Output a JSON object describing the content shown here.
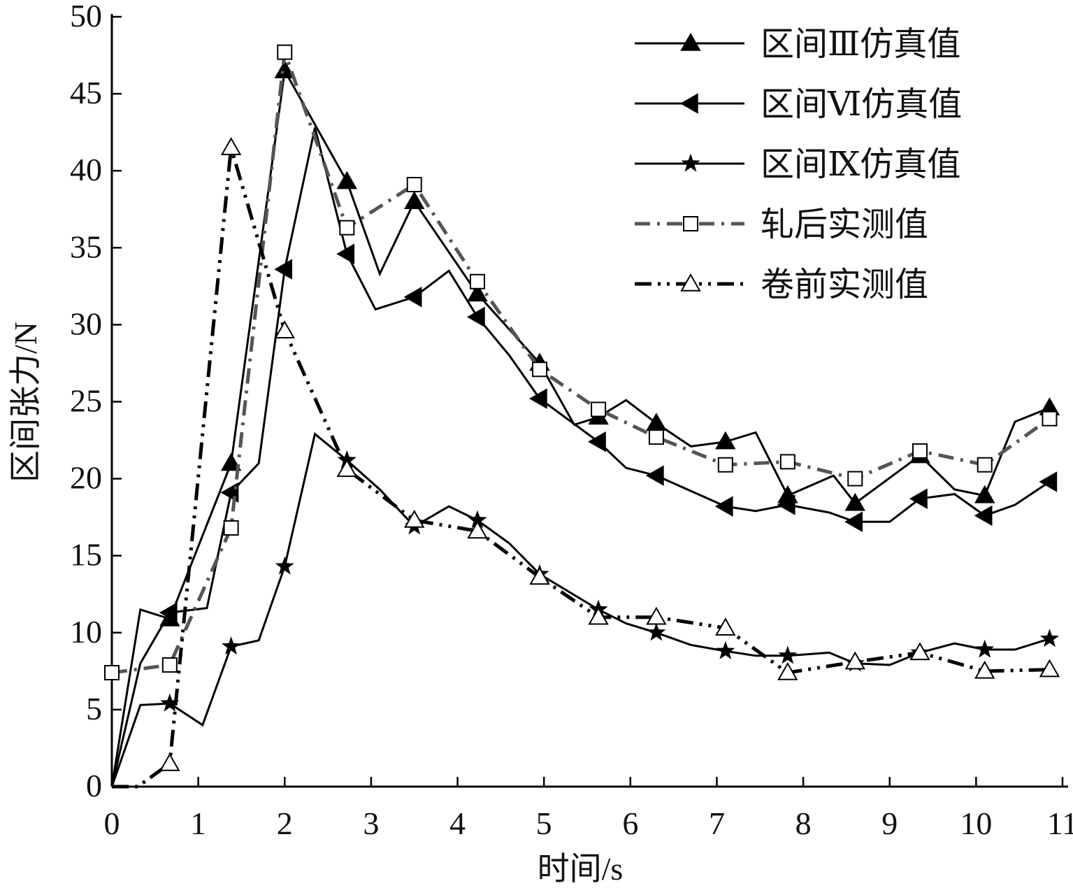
{
  "chart_data": {
    "type": "line",
    "title": "",
    "xlabel": "时间/s",
    "ylabel": "区间张力/N",
    "xlim": [
      0,
      11
    ],
    "ylim": [
      0,
      50
    ],
    "xticks": [
      "0",
      "1",
      "2",
      "3",
      "4",
      "5",
      "6",
      "7",
      "8",
      "9",
      "10",
      "11"
    ],
    "yticks": [
      "0",
      "5",
      "10",
      "15",
      "20",
      "25",
      "30",
      "35",
      "40",
      "45",
      "50"
    ],
    "grid": false,
    "legend_position": "top-right",
    "series": [
      {
        "name": "区间Ⅲ仿真值",
        "marker": "triangle-up-filled",
        "style": "solid",
        "color": "#000000",
        "x": [
          0,
          0.33,
          0.67,
          1.38,
          2.0,
          2.72,
          3.1,
          3.5,
          4.23,
          4.95,
          5.35,
          5.63,
          5.95,
          6.3,
          6.7,
          7.1,
          7.45,
          7.82,
          8.35,
          8.6,
          9.35,
          9.75,
          10.1,
          10.45,
          10.85
        ],
        "y": [
          0,
          11.5,
          10.9,
          21,
          46.5,
          39.3,
          33.3,
          38,
          32,
          27.5,
          23.5,
          24,
          25.1,
          23.6,
          22.1,
          22.4,
          23,
          18.9,
          20.2,
          18.4,
          21.5,
          19.3,
          18.9,
          23.7,
          24.6
        ],
        "marked": [
          0,
          0,
          1,
          1,
          1,
          1,
          0,
          1,
          1,
          1,
          0,
          1,
          0,
          1,
          0,
          1,
          0,
          1,
          0,
          1,
          1,
          0,
          1,
          0,
          1
        ]
      },
      {
        "name": "区间Ⅵ仿真值",
        "marker": "triangle-left-filled",
        "style": "solid",
        "color": "#000000",
        "x": [
          0,
          0.33,
          0.67,
          1.1,
          1.38,
          1.7,
          2.0,
          2.35,
          2.72,
          3.05,
          3.5,
          3.9,
          4.23,
          4.6,
          4.95,
          5.63,
          5.95,
          6.3,
          7.1,
          7.45,
          7.82,
          8.3,
          8.6,
          9.0,
          9.35,
          9.75,
          10.1,
          10.45,
          10.85
        ],
        "y": [
          0,
          8,
          11.3,
          11.6,
          19.1,
          21,
          33.6,
          42.8,
          34.6,
          31,
          31.8,
          33.5,
          30.5,
          28,
          25.2,
          22.4,
          20.7,
          20.2,
          18.2,
          17.9,
          18.3,
          17.8,
          17.2,
          17.2,
          18.7,
          19,
          17.6,
          18.3,
          19.8
        ],
        "marked": [
          0,
          0,
          1,
          0,
          1,
          0,
          1,
          0,
          1,
          0,
          1,
          0,
          1,
          0,
          1,
          1,
          0,
          1,
          1,
          0,
          1,
          0,
          1,
          0,
          1,
          0,
          1,
          0,
          1
        ]
      },
      {
        "name": "区间Ⅸ仿真值",
        "marker": "star-filled",
        "style": "solid",
        "color": "#000000",
        "x": [
          0,
          0.33,
          0.67,
          1.05,
          1.38,
          1.7,
          2.0,
          2.35,
          2.72,
          3.1,
          3.5,
          3.9,
          4.23,
          4.6,
          4.95,
          5.63,
          5.95,
          6.3,
          6.7,
          7.1,
          7.45,
          7.82,
          8.3,
          8.6,
          9.0,
          9.35,
          9.75,
          10.1,
          10.45,
          10.85
        ],
        "y": [
          0,
          5.3,
          5.4,
          4,
          9.1,
          9.5,
          14.3,
          22.9,
          21.2,
          19.3,
          16.9,
          18.2,
          17.3,
          15.8,
          13.8,
          11.5,
          10.6,
          10,
          9.2,
          8.8,
          8.5,
          8.5,
          8.7,
          8,
          7.9,
          8.7,
          9.3,
          8.9,
          8.9,
          9.6
        ],
        "marked": [
          0,
          0,
          1,
          0,
          1,
          0,
          1,
          0,
          1,
          0,
          1,
          0,
          1,
          0,
          1,
          1,
          0,
          1,
          0,
          1,
          0,
          1,
          0,
          1,
          0,
          1,
          0,
          1,
          0,
          1
        ]
      },
      {
        "name": "轧后实测值",
        "marker": "square-open",
        "style": "dash-dot",
        "color": "#555555",
        "x": [
          0,
          0.67,
          1.38,
          2.0,
          2.72,
          3.5,
          4.23,
          4.95,
          5.63,
          6.3,
          7.1,
          7.82,
          8.6,
          9.35,
          10.1,
          10.85
        ],
        "y": [
          7.4,
          7.9,
          16.8,
          47.7,
          36.3,
          39.1,
          32.8,
          27.1,
          24.5,
          22.7,
          20.9,
          21.1,
          20,
          21.8,
          20.9,
          23.9
        ],
        "marked": [
          1,
          1,
          1,
          1,
          1,
          1,
          1,
          1,
          1,
          1,
          1,
          1,
          1,
          1,
          1,
          1
        ]
      },
      {
        "name": "卷前实测值",
        "marker": "triangle-up-open",
        "style": "dash-dot-dot",
        "color": "#000000",
        "x": [
          0,
          0.3,
          0.67,
          1.38,
          2.0,
          2.72,
          3.5,
          4.23,
          4.95,
          5.63,
          6.3,
          7.1,
          7.82,
          8.6,
          9.35,
          10.1,
          10.85
        ],
        "y": [
          0,
          0,
          1.5,
          41.5,
          29.6,
          20.6,
          17.3,
          16.6,
          13.6,
          11,
          11,
          10.3,
          7.4,
          8.1,
          8.7,
          7.5,
          7.6
        ],
        "marked": [
          0,
          0,
          1,
          1,
          1,
          1,
          1,
          1,
          1,
          1,
          1,
          1,
          1,
          1,
          1,
          1,
          1
        ]
      }
    ]
  }
}
